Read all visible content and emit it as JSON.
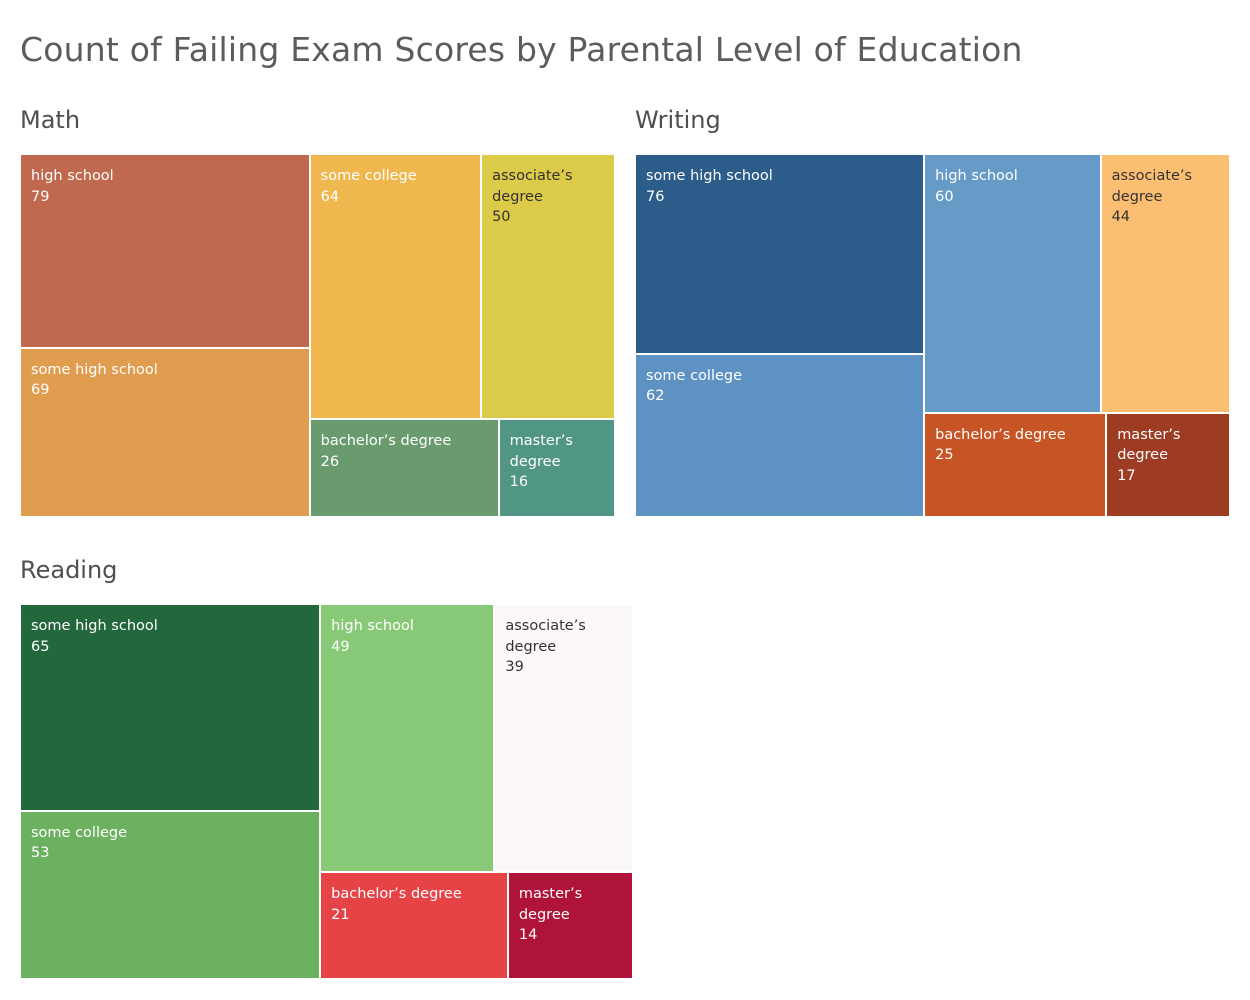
{
  "title": "Count of Failing Exam Scores by Parental Level of Education",
  "chart_data": [
    {
      "type": "treemap",
      "title": "Math",
      "items": [
        {
          "name": "high school",
          "value": 79,
          "color": "#c0694e"
        },
        {
          "name": "some high school",
          "value": 69,
          "color": "#e09c4f"
        },
        {
          "name": "some college",
          "value": 64,
          "color": "#f0b74f"
        },
        {
          "name": "associate’s degree",
          "value": 50,
          "color": "#dccb48"
        },
        {
          "name": "bachelor’s degree",
          "value": 26,
          "color": "#6a9b6f"
        },
        {
          "name": "master’s degree",
          "value": 16,
          "color": "#519684"
        }
      ]
    },
    {
      "type": "treemap",
      "title": "Writing",
      "items": [
        {
          "name": "some high school",
          "value": 76,
          "color": "#2c5c8a"
        },
        {
          "name": "some college",
          "value": 62,
          "color": "#5e92c2"
        },
        {
          "name": "high school",
          "value": 60,
          "color": "#669bc8"
        },
        {
          "name": "associate’s degree",
          "value": 44,
          "color": "#fcbf72"
        },
        {
          "name": "bachelor’s degree",
          "value": 25,
          "color": "#c65424"
        },
        {
          "name": "master’s degree",
          "value": 17,
          "color": "#9d3b23"
        }
      ]
    },
    {
      "type": "treemap",
      "title": "Reading",
      "items": [
        {
          "name": "some high school",
          "value": 65,
          "color": "#23673d"
        },
        {
          "name": "some college",
          "value": 53,
          "color": "#6cb15f"
        },
        {
          "name": "high school",
          "value": 49,
          "color": "#88c977"
        },
        {
          "name": "associate’s degree",
          "value": 39,
          "color": "#fcf8f7"
        },
        {
          "name": "bachelor’s degree",
          "value": 21,
          "color": "#e64347"
        },
        {
          "name": "master’s degree",
          "value": 14,
          "color": "#af1339"
        }
      ]
    }
  ]
}
